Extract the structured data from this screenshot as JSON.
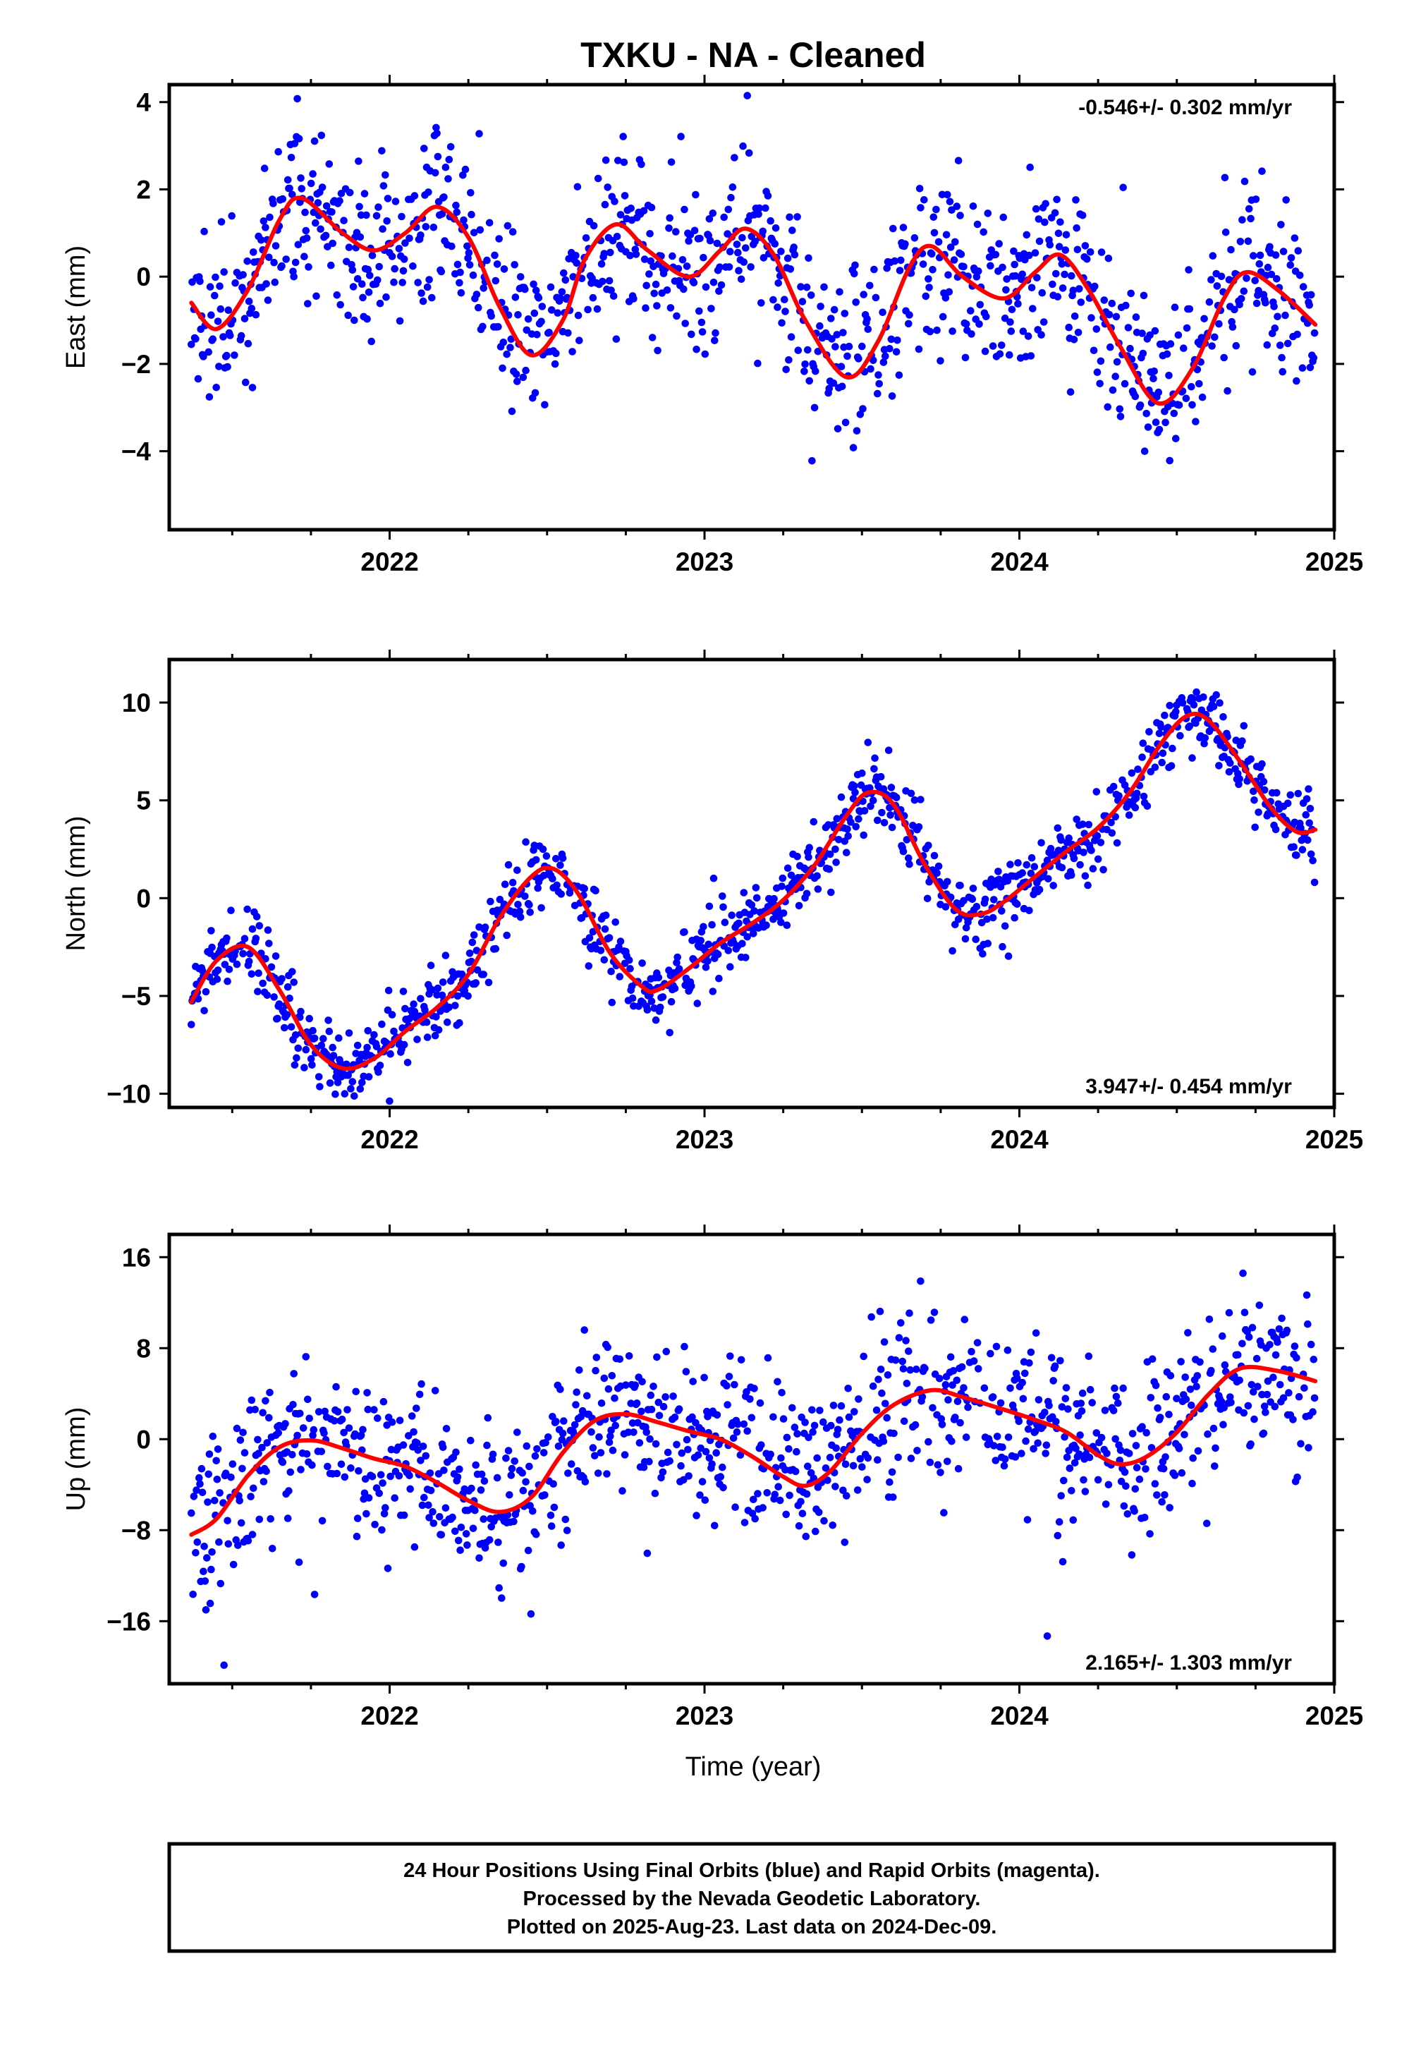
{
  "title": "TXKU  - NA - Cleaned",
  "xlabel": "Time (year)",
  "footer": {
    "line1": "24 Hour Positions Using Final Orbits (blue) and Rapid Orbits (magenta).",
    "line2": "Processed by the Nevada Geodetic Laboratory.",
    "line3": "Plotted on 2025-Aug-23. Last data on 2024-Dec-09."
  },
  "colors": {
    "points": "#0000ff",
    "model": "#ff0000",
    "frame": "#000000"
  },
  "chart_data": [
    {
      "type": "scatter",
      "ylabel": "East (mm)",
      "rate": "-0.546+/- 0.302 mm/yr",
      "rate_position": "top-right",
      "xlim": [
        2021.3,
        2025.0
      ],
      "ylim": [
        -5.8,
        4.4
      ],
      "x_ticks": [
        2022,
        2023,
        2024,
        2025
      ],
      "y_ticks": [
        -4,
        -2,
        0,
        2,
        4
      ],
      "data_start": 2021.37,
      "data_end": 2024.94,
      "scatter_std": 1.0,
      "scatter_seed": 11,
      "model": {
        "name": "seasonal fit",
        "x": [
          2021.37,
          2021.45,
          2021.55,
          2021.65,
          2021.72,
          2021.85,
          2021.95,
          2022.05,
          2022.15,
          2022.25,
          2022.35,
          2022.45,
          2022.55,
          2022.62,
          2022.72,
          2022.82,
          2022.95,
          2023.05,
          2023.13,
          2023.22,
          2023.32,
          2023.45,
          2023.55,
          2023.65,
          2023.72,
          2023.82,
          2023.95,
          2024.05,
          2024.13,
          2024.22,
          2024.32,
          2024.44,
          2024.55,
          2024.65,
          2024.72,
          2024.82,
          2024.94
        ],
        "y": [
          -0.6,
          -1.2,
          -0.3,
          1.3,
          1.8,
          1.0,
          0.6,
          1.0,
          1.6,
          0.9,
          -0.7,
          -1.8,
          -1.0,
          0.4,
          1.2,
          0.6,
          0.0,
          0.6,
          1.1,
          0.5,
          -1.0,
          -2.3,
          -1.5,
          0.2,
          0.7,
          0.0,
          -0.5,
          0.1,
          0.5,
          -0.3,
          -1.6,
          -2.9,
          -2.1,
          -0.5,
          0.1,
          -0.3,
          -1.1
        ]
      }
    },
    {
      "type": "scatter",
      "ylabel": "North (mm)",
      "rate": "3.947+/- 0.454 mm/yr",
      "rate_position": "bottom-right",
      "xlim": [
        2021.3,
        2025.0
      ],
      "ylim": [
        -10.7,
        12.2
      ],
      "x_ticks": [
        2022,
        2023,
        2024,
        2025
      ],
      "y_ticks": [
        -10,
        -5,
        0,
        5,
        10
      ],
      "data_start": 2021.37,
      "data_end": 2024.94,
      "scatter_std": 0.9,
      "scatter_seed": 23,
      "model": {
        "name": "seasonal fit",
        "x": [
          2021.37,
          2021.45,
          2021.55,
          2021.65,
          2021.75,
          2021.85,
          2021.95,
          2022.05,
          2022.15,
          2022.25,
          2022.35,
          2022.45,
          2022.52,
          2022.6,
          2022.7,
          2022.8,
          2022.85,
          2022.95,
          2023.05,
          2023.15,
          2023.25,
          2023.35,
          2023.45,
          2023.52,
          2023.6,
          2023.7,
          2023.8,
          2023.88,
          2023.95,
          2024.05,
          2024.15,
          2024.25,
          2024.35,
          2024.45,
          2024.53,
          2024.6,
          2024.7,
          2024.8,
          2024.88,
          2024.94
        ],
        "y": [
          -5.3,
          -3.2,
          -2.5,
          -4.7,
          -7.5,
          -8.7,
          -8.2,
          -6.8,
          -5.6,
          -3.9,
          -1.0,
          1.1,
          1.5,
          0.2,
          -2.8,
          -4.5,
          -4.7,
          -3.6,
          -2.3,
          -1.3,
          -0.1,
          1.7,
          4.2,
          5.4,
          4.8,
          1.7,
          -0.6,
          -0.8,
          -0.2,
          1.1,
          2.4,
          3.6,
          5.4,
          7.9,
          9.3,
          9.1,
          7.0,
          4.6,
          3.4,
          3.5
        ]
      }
    },
    {
      "type": "scatter",
      "ylabel": "Up (mm)",
      "rate": "2.165+/- 1.303 mm/yr",
      "rate_position": "bottom-right",
      "xlim": [
        2021.3,
        2025.0
      ],
      "ylim": [
        -21.5,
        18.0
      ],
      "x_ticks": [
        2022,
        2023,
        2024,
        2025
      ],
      "y_ticks": [
        -16,
        -8,
        0,
        8,
        16
      ],
      "data_start": 2021.37,
      "data_end": 2024.94,
      "scatter_std": 3.5,
      "scatter_seed": 37,
      "model": {
        "name": "seasonal fit",
        "x": [
          2021.37,
          2021.45,
          2021.55,
          2021.65,
          2021.75,
          2021.85,
          2021.95,
          2022.05,
          2022.15,
          2022.25,
          2022.35,
          2022.45,
          2022.55,
          2022.65,
          2022.75,
          2022.85,
          2022.95,
          2023.05,
          2023.15,
          2023.25,
          2023.32,
          2023.4,
          2023.5,
          2023.6,
          2023.72,
          2023.82,
          2023.95,
          2024.05,
          2024.15,
          2024.25,
          2024.32,
          2024.4,
          2024.5,
          2024.6,
          2024.7,
          2024.82,
          2024.94
        ],
        "y": [
          -8.4,
          -7.0,
          -3.2,
          -0.7,
          -0.1,
          -0.8,
          -1.7,
          -2.4,
          -3.8,
          -5.4,
          -6.4,
          -5.1,
          -1.2,
          1.6,
          2.2,
          1.5,
          0.7,
          0.0,
          -1.5,
          -3.3,
          -4.1,
          -2.8,
          0.5,
          3.0,
          4.3,
          3.7,
          2.6,
          1.7,
          0.6,
          -1.4,
          -2.2,
          -1.6,
          0.6,
          3.9,
          6.2,
          6.0,
          5.1
        ]
      }
    }
  ]
}
